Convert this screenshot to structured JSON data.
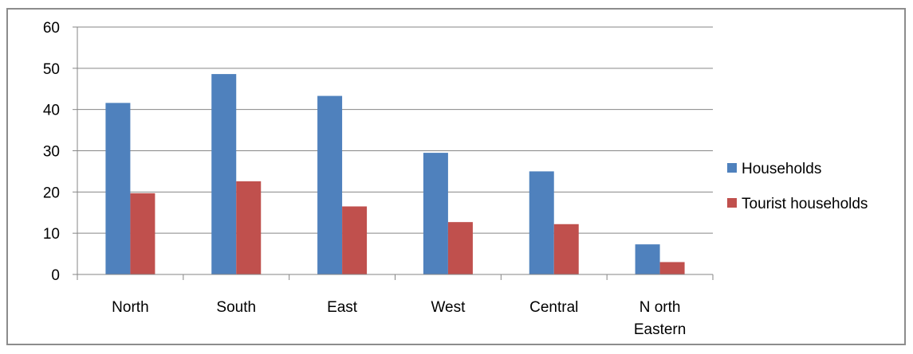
{
  "chart_data": {
    "type": "bar",
    "categories": [
      "North",
      "South",
      "East",
      "West",
      "Central",
      "N orth Eastern"
    ],
    "category_lines": [
      [
        "North"
      ],
      [
        "South"
      ],
      [
        "East"
      ],
      [
        "West"
      ],
      [
        "Central"
      ],
      [
        "N orth",
        "Eastern"
      ]
    ],
    "series": [
      {
        "name": "Households",
        "values": [
          41.6,
          48.6,
          43.3,
          29.5,
          25.0,
          7.3
        ],
        "color": "#4f81bd"
      },
      {
        "name": "Tourist households",
        "values": [
          19.7,
          22.6,
          16.5,
          12.7,
          12.2,
          3.0
        ],
        "color": "#c0504d"
      }
    ],
    "title": "",
    "xlabel": "",
    "ylabel": "",
    "ylim": [
      0,
      60
    ],
    "yticks": [
      "0",
      "10",
      "20",
      "30",
      "40",
      "50",
      "60"
    ],
    "grid": true,
    "legend_position": "right"
  }
}
